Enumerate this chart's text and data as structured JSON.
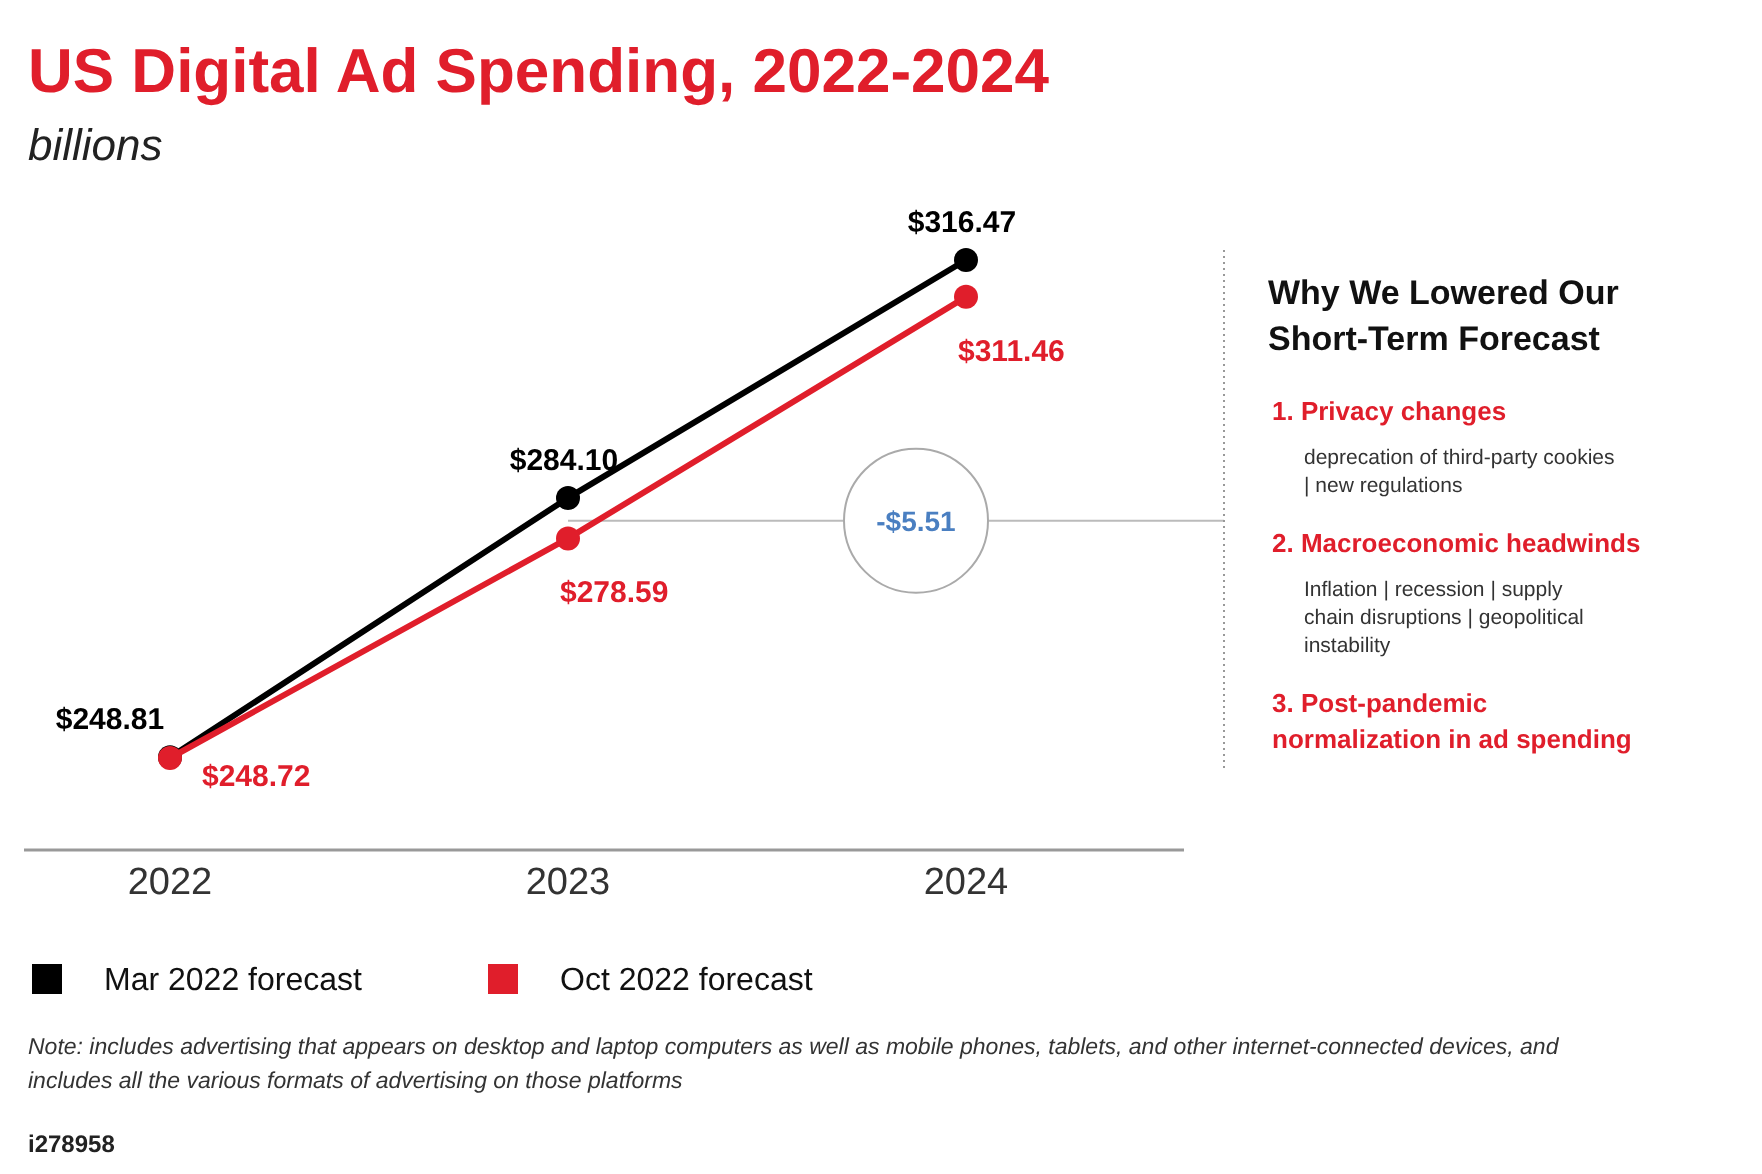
{
  "chart_data": [
    {
      "type": "line",
      "title": "US Digital Ad Spending, 2022-2024",
      "subtitle": "billions",
      "categories": [
        "2022",
        "2023",
        "2024"
      ],
      "legend": "bottom",
      "marker": "circle",
      "series": [
        {
          "name": "Mar 2022 forecast",
          "color": "#000000",
          "values": [
            248.81,
            284.1,
            316.47
          ],
          "value_labels": [
            "$248.81",
            "$284.10",
            "$316.47"
          ]
        },
        {
          "name": "Oct 2022 forecast",
          "color": "#e01e2b",
          "values": [
            248.72,
            278.59,
            311.46
          ],
          "value_labels": [
            "$248.72",
            "$278.59",
            "$311.46"
          ]
        }
      ],
      "ref_lines": [
        {
          "axis": "y",
          "value": 281,
          "color": "#bbbbbb"
        }
      ],
      "annotations": [
        "-$5.51",
        "Note: includes advertising that appears on desktop and laptop computers as well as mobile phones, tablets, and other internet-connected devices, and includes all the various formats of advertising on those platforms",
        "i278958"
      ]
    },
    {
      "type": "other",
      "title": "Why We Lowered Our Short-Term Forecast",
      "annotations": [
        "1. Privacy changes",
        "deprecation of third-party cookies | new regulations",
        "2. Macroeconomic headwinds",
        "Inflation | recession | supply chain disruptions | geopolitical instability",
        "3. Post-pandemic normalization in ad spending"
      ]
    }
  ]
}
